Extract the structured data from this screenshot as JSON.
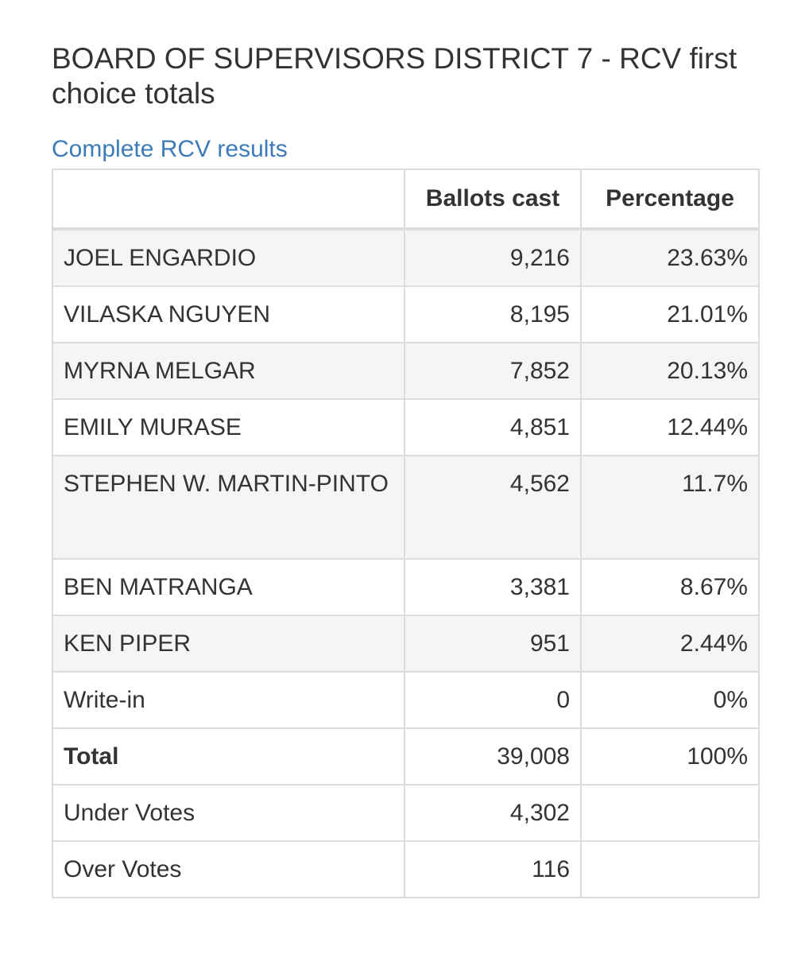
{
  "page": {
    "title": "BOARD OF SUPERVISORS DISTRICT 7 - RCV first choice totals",
    "link_label": "Complete RCV results"
  },
  "table": {
    "headers": [
      "",
      "Ballots cast",
      "Percentage"
    ],
    "rows": [
      {
        "name": "JOEL ENGARDIO",
        "ballots": "9,216",
        "pct": "23.63%"
      },
      {
        "name": "VILASKA NGUYEN",
        "ballots": "8,195",
        "pct": "21.01%"
      },
      {
        "name": "MYRNA MELGAR",
        "ballots": "7,852",
        "pct": "20.13%"
      },
      {
        "name": "EMILY MURASE",
        "ballots": "4,851",
        "pct": "12.44%"
      },
      {
        "name": "STEPHEN W. MARTIN-PINTO",
        "ballots": "4,562",
        "pct": "11.7%"
      },
      {
        "name": "BEN MATRANGA",
        "ballots": "3,381",
        "pct": "8.67%"
      },
      {
        "name": "KEN PIPER",
        "ballots": "951",
        "pct": "2.44%"
      },
      {
        "name": "Write-in",
        "ballots": "0",
        "pct": "0%"
      },
      {
        "name": "Total",
        "ballots": "39,008",
        "pct": "100%"
      },
      {
        "name": "Under Votes",
        "ballots": "4,302",
        "pct": ""
      },
      {
        "name": "Over Votes",
        "ballots": "116",
        "pct": ""
      }
    ]
  },
  "colors": {
    "link": "#3d7ab8",
    "text": "#333333",
    "border": "#dddddd",
    "stripe": "#f5f5f5"
  }
}
